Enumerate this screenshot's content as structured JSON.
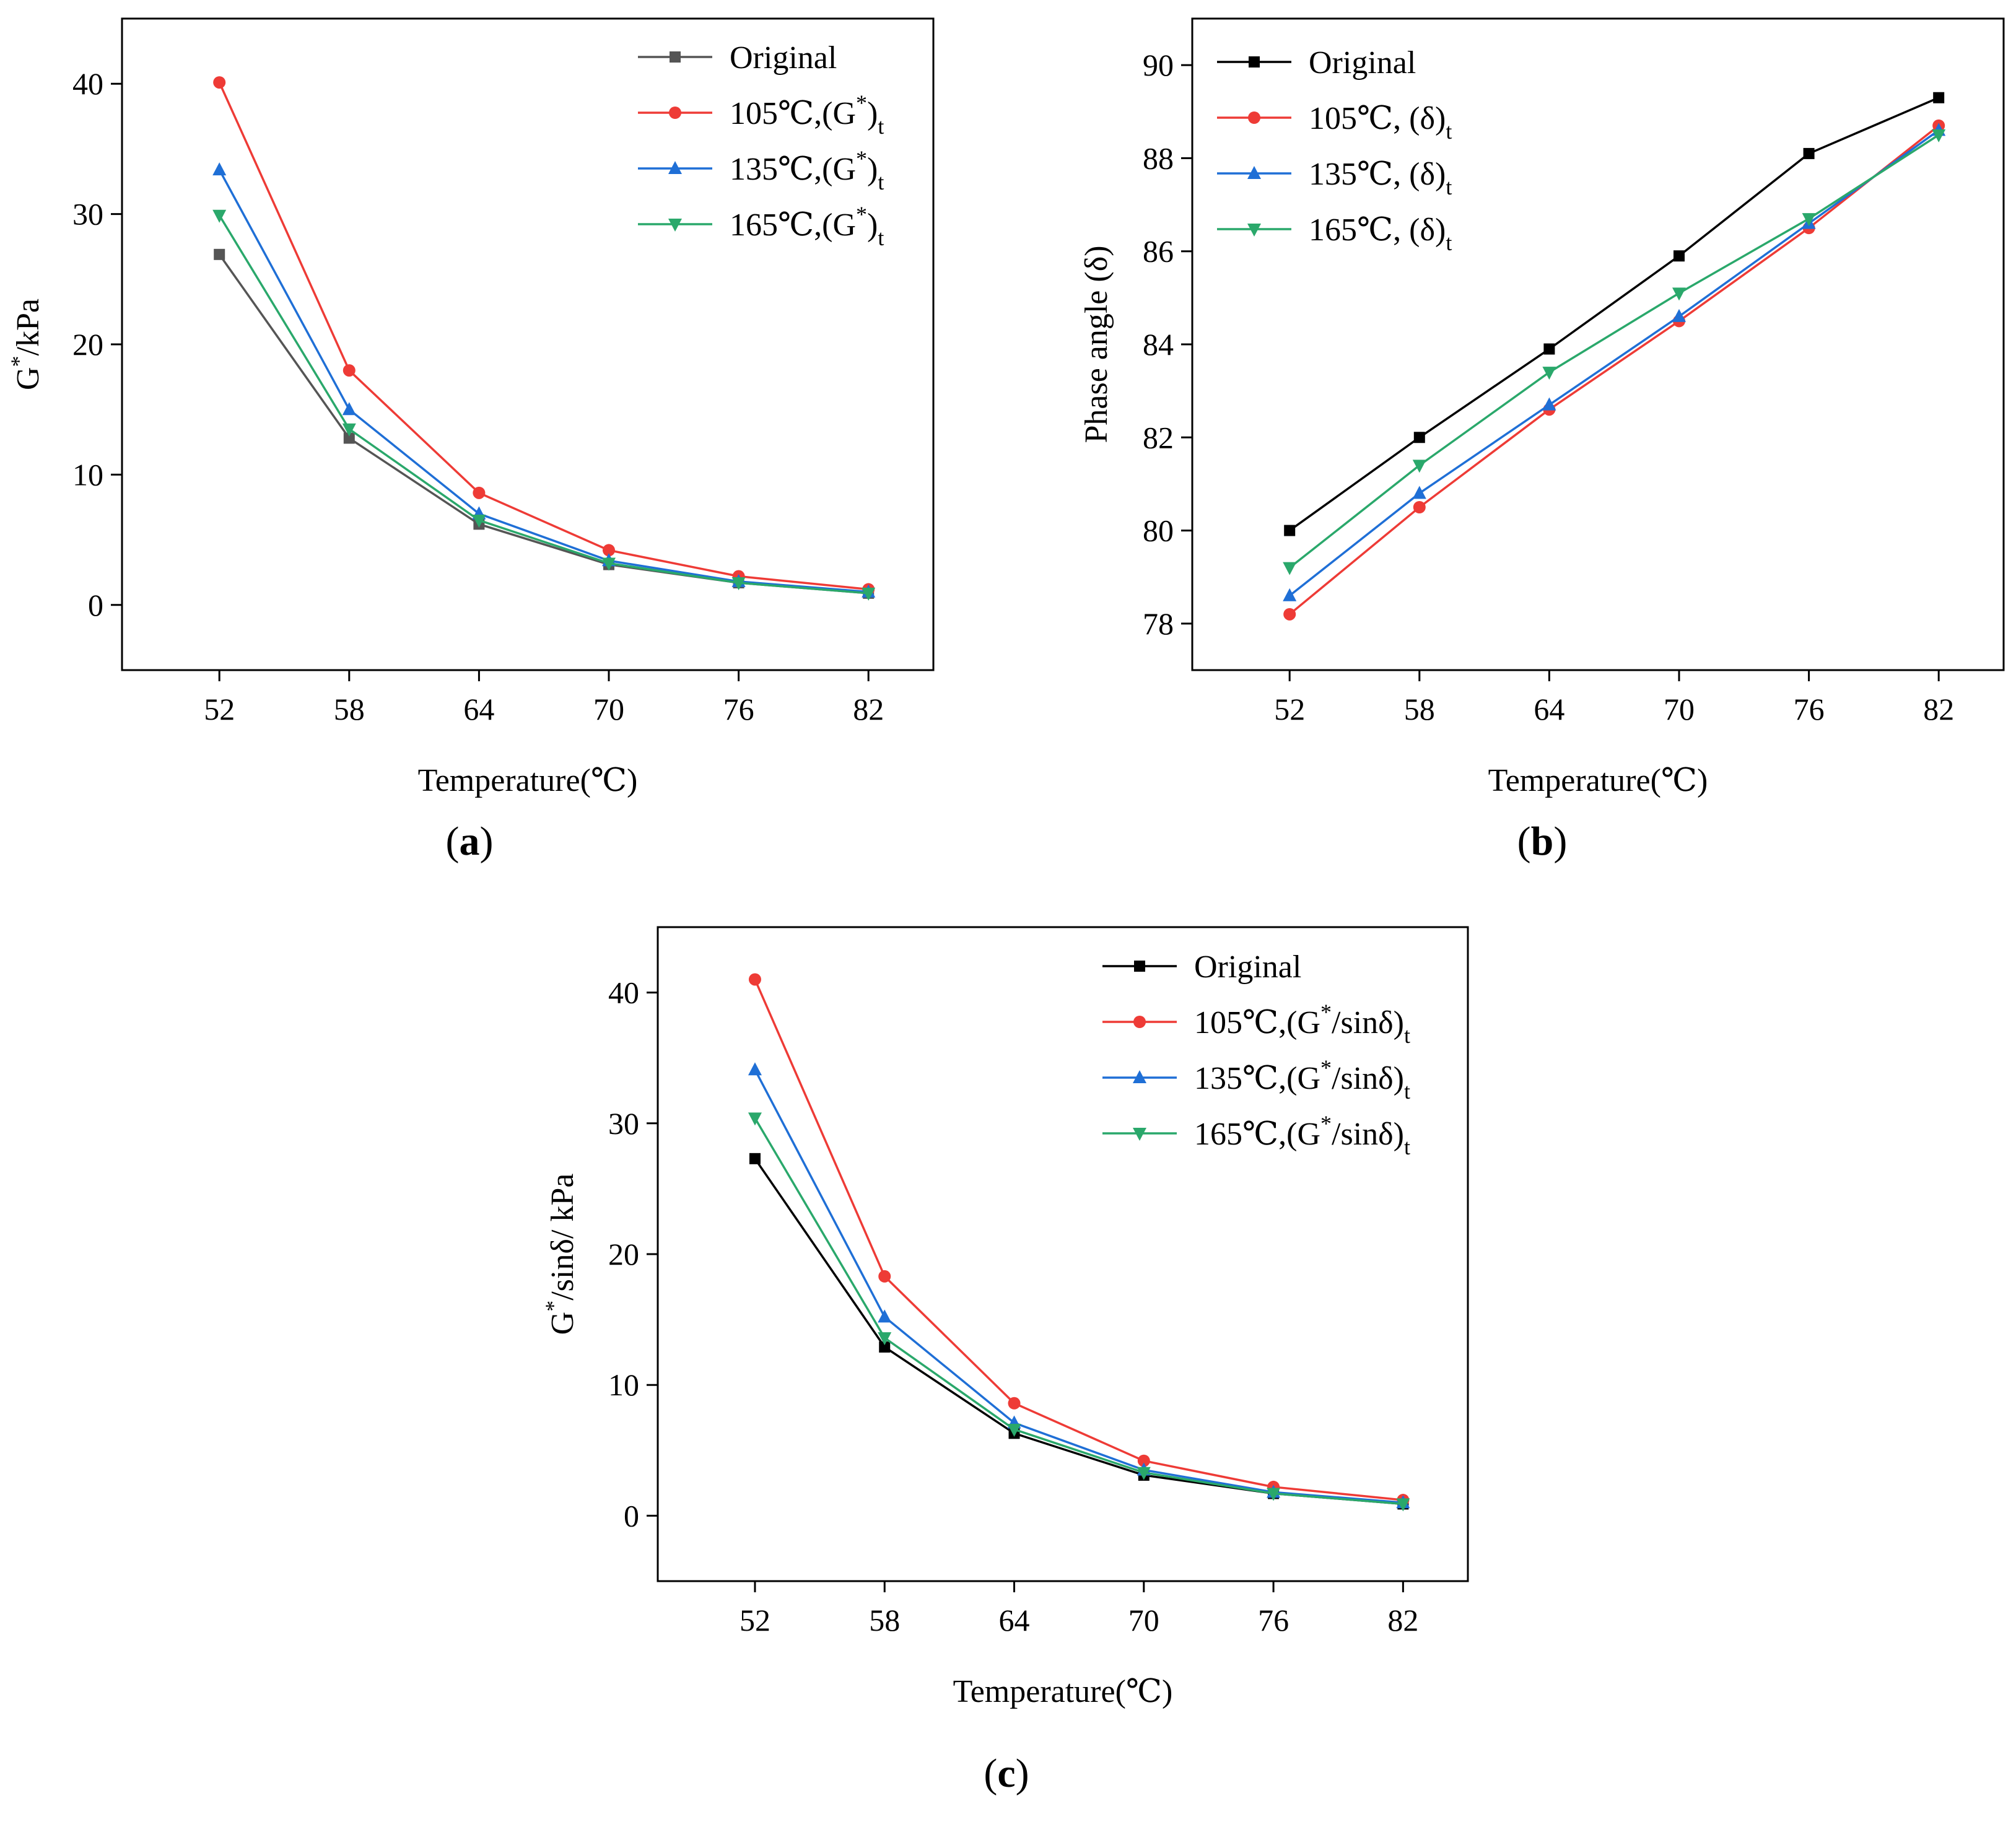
{
  "figure": {
    "panels": [
      {
        "id": "a",
        "label_open": "(",
        "label_letter": "a",
        "label_close": ")"
      },
      {
        "id": "b",
        "label_open": "(",
        "label_letter": "b",
        "label_close": ")"
      },
      {
        "id": "c",
        "label_open": "(",
        "label_letter": "c",
        "label_close": ")"
      }
    ]
  },
  "chart_data": [
    {
      "id": "a",
      "type": "line",
      "title": "",
      "xlabel": "Temperature(℃)",
      "ylabel": "G*/kPa",
      "ylabel_parts": [
        "G",
        "*",
        "/kPa"
      ],
      "x": [
        52,
        58,
        64,
        70,
        76,
        82
      ],
      "xticks": [
        "52",
        "58",
        "64",
        "70",
        "76",
        "82"
      ],
      "xlim": [
        47.5,
        85
      ],
      "ylim": [
        -5,
        45
      ],
      "yticks": [
        0,
        10,
        20,
        30,
        40
      ],
      "grid": false,
      "legend_position": "top-right",
      "series": [
        {
          "name": "Original",
          "legend": {
            "main": "Original",
            "sup": "",
            "rest": "",
            "sub": ""
          },
          "color": "#555555",
          "marker": "square",
          "values": [
            26.9,
            12.8,
            6.2,
            3.1,
            1.7,
            0.9
          ]
        },
        {
          "name": "105℃,(G*)t",
          "legend": {
            "main": "105℃,(G",
            "sup": "*",
            "rest": ")",
            "sub": "t"
          },
          "color": "#ee3b36",
          "marker": "circle",
          "values": [
            40.1,
            18.0,
            8.6,
            4.2,
            2.2,
            1.2
          ]
        },
        {
          "name": "135℃,(G*)t",
          "legend": {
            "main": "135℃,(G",
            "sup": "*",
            "rest": ")",
            "sub": "t"
          },
          "color": "#1f6fd6",
          "marker": "triangle-up",
          "values": [
            33.4,
            15.0,
            7.0,
            3.4,
            1.8,
            1.0
          ]
        },
        {
          "name": "165℃,(G*)t",
          "legend": {
            "main": "165℃,(G",
            "sup": "*",
            "rest": ")",
            "sub": "t"
          },
          "color": "#2aa86b",
          "marker": "triangle-down",
          "values": [
            29.9,
            13.5,
            6.5,
            3.2,
            1.7,
            0.9
          ]
        }
      ]
    },
    {
      "id": "b",
      "type": "line",
      "title": "",
      "xlabel": "Temperature(℃)",
      "ylabel": "Phase angle (δ)",
      "ylabel_parts": [
        "Phase angle (δ)",
        "",
        ""
      ],
      "x": [
        52,
        58,
        64,
        70,
        76,
        82
      ],
      "xticks": [
        "52",
        "58",
        "64",
        "70",
        "76",
        "82"
      ],
      "xlim": [
        47.5,
        85
      ],
      "ylim": [
        77,
        91
      ],
      "yticks": [
        78,
        80,
        82,
        84,
        86,
        88,
        90
      ],
      "grid": false,
      "legend_position": "top-left",
      "series": [
        {
          "name": "Original",
          "legend": {
            "main": "Original",
            "sup": "",
            "rest": "",
            "sub": ""
          },
          "color": "#000000",
          "marker": "square",
          "values": [
            80.0,
            82.0,
            83.9,
            85.9,
            88.1,
            89.3
          ]
        },
        {
          "name": "105℃, (δ)t",
          "legend": {
            "main": "105℃, (δ)",
            "sup": "",
            "rest": "",
            "sub": "t"
          },
          "color": "#ee3b36",
          "marker": "circle",
          "values": [
            78.2,
            80.5,
            82.6,
            84.5,
            86.5,
            88.7
          ]
        },
        {
          "name": "135℃, (δ)t",
          "legend": {
            "main": "135℃, (δ)",
            "sup": "",
            "rest": "",
            "sub": "t"
          },
          "color": "#1f6fd6",
          "marker": "triangle-up",
          "values": [
            78.6,
            80.8,
            82.7,
            84.6,
            86.6,
            88.6
          ]
        },
        {
          "name": "165℃, (δ)t",
          "legend": {
            "main": "165℃, (δ)",
            "sup": "",
            "rest": "",
            "sub": "t"
          },
          "color": "#2aa86b",
          "marker": "triangle-down",
          "values": [
            79.2,
            81.4,
            83.4,
            85.1,
            86.7,
            88.5
          ]
        }
      ]
    },
    {
      "id": "c",
      "type": "line",
      "title": "",
      "xlabel": "Temperature(℃)",
      "ylabel": "G*/sinδ/ kPa",
      "ylabel_parts": [
        "G",
        "*",
        "/sinδ/ kPa"
      ],
      "x": [
        52,
        58,
        64,
        70,
        76,
        82
      ],
      "xticks": [
        "52",
        "58",
        "64",
        "70",
        "76",
        "82"
      ],
      "xlim": [
        47.5,
        85
      ],
      "ylim": [
        -5,
        45
      ],
      "yticks": [
        0,
        10,
        20,
        30,
        40
      ],
      "grid": false,
      "legend_position": "top-right",
      "series": [
        {
          "name": "Original",
          "legend": {
            "main": "Original",
            "sup": "",
            "rest": "",
            "sub": ""
          },
          "color": "#000000",
          "marker": "square",
          "values": [
            27.3,
            12.9,
            6.3,
            3.1,
            1.7,
            0.9
          ]
        },
        {
          "name": "105℃,(G*/sinδ)t",
          "legend": {
            "main": "105℃,(G",
            "sup": "*",
            "rest": "/sinδ)",
            "sub": "t"
          },
          "color": "#ee3b36",
          "marker": "circle",
          "values": [
            41.0,
            18.3,
            8.6,
            4.2,
            2.2,
            1.2
          ]
        },
        {
          "name": "135℃,(G*/sinδ)t",
          "legend": {
            "main": "135℃,(G",
            "sup": "*",
            "rest": "/sinδ)",
            "sub": "t"
          },
          "color": "#1f6fd6",
          "marker": "triangle-up",
          "values": [
            34.1,
            15.2,
            7.1,
            3.5,
            1.8,
            1.0
          ]
        },
        {
          "name": "165℃,(G*/sinδ)t",
          "legend": {
            "main": "165℃,(G",
            "sup": "*",
            "rest": "/sinδ)",
            "sub": "t"
          },
          "color": "#2aa86b",
          "marker": "triangle-down",
          "values": [
            30.4,
            13.6,
            6.6,
            3.3,
            1.7,
            0.9
          ]
        }
      ]
    }
  ]
}
